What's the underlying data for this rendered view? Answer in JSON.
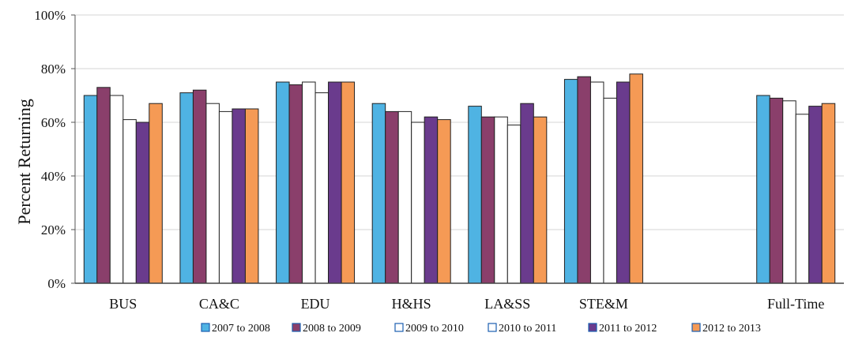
{
  "chart_data": {
    "type": "bar",
    "ylabel": "Percent Returning",
    "ylim": [
      0,
      100
    ],
    "yticks": [
      "0%",
      "20%",
      "40%",
      "60%",
      "80%",
      "100%"
    ],
    "grid": true,
    "legend_position": "bottom",
    "categories": [
      "BUS",
      "CA&C",
      "EDU",
      "H&HS",
      "LA&SS",
      "STE&M",
      "",
      "Full-Time"
    ],
    "series": [
      {
        "name": "2007 to 2008",
        "color": "#4fb3e3",
        "values": [
          70,
          71,
          75,
          67,
          66,
          76,
          null,
          70
        ]
      },
      {
        "name": "2008 to 2009",
        "color": "#8a3f6b",
        "values": [
          73,
          72,
          74,
          64,
          62,
          77,
          null,
          69
        ]
      },
      {
        "name": "2009 to 2010",
        "color": "#ffffff",
        "values": [
          70,
          67,
          75,
          64,
          62,
          75,
          null,
          68
        ]
      },
      {
        "name": "2010 to 2011",
        "color": "#ffffff",
        "values": [
          61,
          64,
          71,
          60,
          59,
          69,
          null,
          63
        ]
      },
      {
        "name": "2011 to 2012",
        "color": "#6a3b8d",
        "values": [
          60,
          65,
          75,
          62,
          67,
          75,
          null,
          66
        ]
      },
      {
        "name": "2012 to 2013",
        "color": "#f59a55",
        "values": [
          67,
          65,
          75,
          61,
          62,
          78,
          null,
          67
        ]
      }
    ]
  }
}
